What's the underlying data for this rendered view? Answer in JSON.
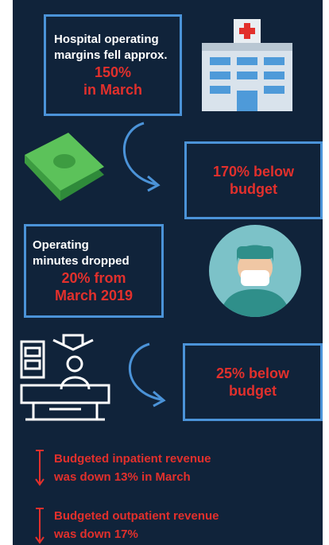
{
  "box1": {
    "lines": [
      "Hospital operating",
      "margins fell approx."
    ],
    "highlight": [
      "150%",
      "in March"
    ]
  },
  "box2": {
    "highlight": [
      "170% below",
      "budget"
    ]
  },
  "box3": {
    "lines": [
      "Operating",
      "minutes dropped"
    ],
    "highlight": [
      "20% from",
      "March 2019"
    ]
  },
  "box4": {
    "highlight": [
      "25% below",
      "budget"
    ]
  },
  "bullets": [
    [
      "Budgeted inpatient revenue",
      "was down 13% in March"
    ],
    [
      "Budgeted outpatient revenue",
      "was down 17%"
    ]
  ]
}
